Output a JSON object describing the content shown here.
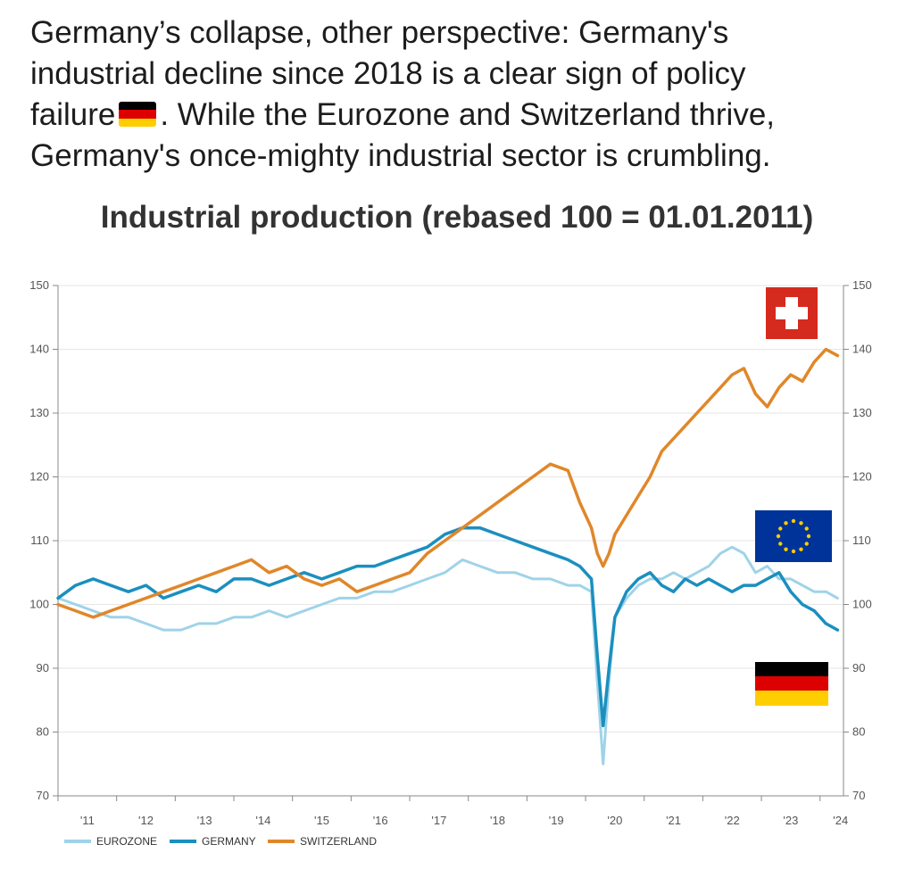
{
  "post": {
    "line1": "Germany’s collapse, other perspective: Germany's",
    "line2": "industrial decline since 2018 is a clear sign of policy",
    "line3_a": "failure",
    "line3_b": ". While the Eurozone and Switzerland thrive,",
    "line4": "Germany's once-mighty industrial sector is crumbling.",
    "emoji": "germany-flag-emoji"
  },
  "colors": {
    "eurozone": "#9fd3e8",
    "germany": "#1b8fbf",
    "switzerland": "#e0872a"
  },
  "chart_data": {
    "type": "line",
    "title": "Industrial production (rebased 100 = 01.01.2011)",
    "xlabel": "",
    "ylabel": "",
    "ylim": [
      70,
      150
    ],
    "xlim": [
      2011.0,
      2024.4
    ],
    "yticks": [
      70,
      80,
      90,
      100,
      110,
      120,
      130,
      140,
      150
    ],
    "xticks": [
      "'11",
      "'12",
      "'13",
      "'14",
      "'15",
      "'16",
      "'17",
      "'18",
      "'19",
      "'20",
      "'21",
      "'22",
      "'23",
      "'24"
    ],
    "grid": "horizontal",
    "legend": "bottom-left",
    "flags": [
      "switzerland-flag",
      "eu-flag",
      "germany-flag"
    ],
    "series": [
      {
        "name": "EUROZONE",
        "color": "#9fd3e8",
        "x": [
          2011.0,
          2011.3,
          2011.6,
          2011.9,
          2012.2,
          2012.5,
          2012.8,
          2013.1,
          2013.4,
          2013.7,
          2014.0,
          2014.3,
          2014.6,
          2014.9,
          2015.2,
          2015.5,
          2015.8,
          2016.1,
          2016.4,
          2016.7,
          2017.0,
          2017.3,
          2017.6,
          2017.9,
          2018.2,
          2018.5,
          2018.8,
          2019.1,
          2019.4,
          2019.7,
          2019.9,
          2020.1,
          2020.2,
          2020.3,
          2020.4,
          2020.5,
          2020.7,
          2020.9,
          2021.1,
          2021.3,
          2021.5,
          2021.7,
          2021.9,
          2022.1,
          2022.3,
          2022.5,
          2022.7,
          2022.9,
          2023.1,
          2023.3,
          2023.5,
          2023.7,
          2023.9,
          2024.1,
          2024.3
        ],
        "y": [
          101,
          100,
          99,
          98,
          98,
          97,
          96,
          96,
          97,
          97,
          98,
          98,
          99,
          98,
          99,
          100,
          101,
          101,
          102,
          102,
          103,
          104,
          105,
          107,
          106,
          105,
          105,
          104,
          104,
          103,
          103,
          102,
          88,
          75,
          88,
          98,
          101,
          103,
          104,
          104,
          105,
          104,
          105,
          106,
          108,
          109,
          108,
          105,
          106,
          104,
          104,
          103,
          102,
          102,
          101
        ]
      },
      {
        "name": "GERMANY",
        "color": "#1b8fbf",
        "x": [
          2011.0,
          2011.3,
          2011.6,
          2011.9,
          2012.2,
          2012.5,
          2012.8,
          2013.1,
          2013.4,
          2013.7,
          2014.0,
          2014.3,
          2014.6,
          2014.9,
          2015.2,
          2015.5,
          2015.8,
          2016.1,
          2016.4,
          2016.7,
          2017.0,
          2017.3,
          2017.6,
          2017.9,
          2018.2,
          2018.5,
          2018.8,
          2019.1,
          2019.4,
          2019.7,
          2019.9,
          2020.1,
          2020.2,
          2020.3,
          2020.4,
          2020.5,
          2020.7,
          2020.9,
          2021.1,
          2021.3,
          2021.5,
          2021.7,
          2021.9,
          2022.1,
          2022.3,
          2022.5,
          2022.7,
          2022.9,
          2023.1,
          2023.3,
          2023.5,
          2023.7,
          2023.9,
          2024.1,
          2024.3
        ],
        "y": [
          101,
          103,
          104,
          103,
          102,
          103,
          101,
          102,
          103,
          102,
          104,
          104,
          103,
          104,
          105,
          104,
          105,
          106,
          106,
          107,
          108,
          109,
          111,
          112,
          112,
          111,
          110,
          109,
          108,
          107,
          106,
          104,
          92,
          81,
          90,
          98,
          102,
          104,
          105,
          103,
          102,
          104,
          103,
          104,
          103,
          102,
          103,
          103,
          104,
          105,
          102,
          100,
          99,
          97,
          96
        ]
      },
      {
        "name": "SWITZERLAND",
        "color": "#e0872a",
        "x": [
          2011.0,
          2011.3,
          2011.6,
          2011.9,
          2012.2,
          2012.5,
          2012.8,
          2013.1,
          2013.4,
          2013.7,
          2014.0,
          2014.3,
          2014.6,
          2014.9,
          2015.2,
          2015.5,
          2015.8,
          2016.1,
          2016.4,
          2016.7,
          2017.0,
          2017.3,
          2017.6,
          2017.9,
          2018.2,
          2018.5,
          2018.8,
          2019.1,
          2019.4,
          2019.7,
          2019.9,
          2020.1,
          2020.2,
          2020.3,
          2020.4,
          2020.5,
          2020.7,
          2020.9,
          2021.1,
          2021.3,
          2021.5,
          2021.7,
          2021.9,
          2022.1,
          2022.3,
          2022.5,
          2022.7,
          2022.9,
          2023.1,
          2023.3,
          2023.5,
          2023.7,
          2023.9,
          2024.1,
          2024.3
        ],
        "y": [
          100,
          99,
          98,
          99,
          100,
          101,
          102,
          103,
          104,
          105,
          106,
          107,
          105,
          106,
          104,
          103,
          104,
          102,
          103,
          104,
          105,
          108,
          110,
          112,
          114,
          116,
          118,
          120,
          122,
          121,
          116,
          112,
          108,
          106,
          108,
          111,
          114,
          117,
          120,
          124,
          126,
          128,
          130,
          132,
          134,
          136,
          137,
          133,
          131,
          134,
          136,
          135,
          138,
          140,
          139
        ]
      }
    ]
  }
}
